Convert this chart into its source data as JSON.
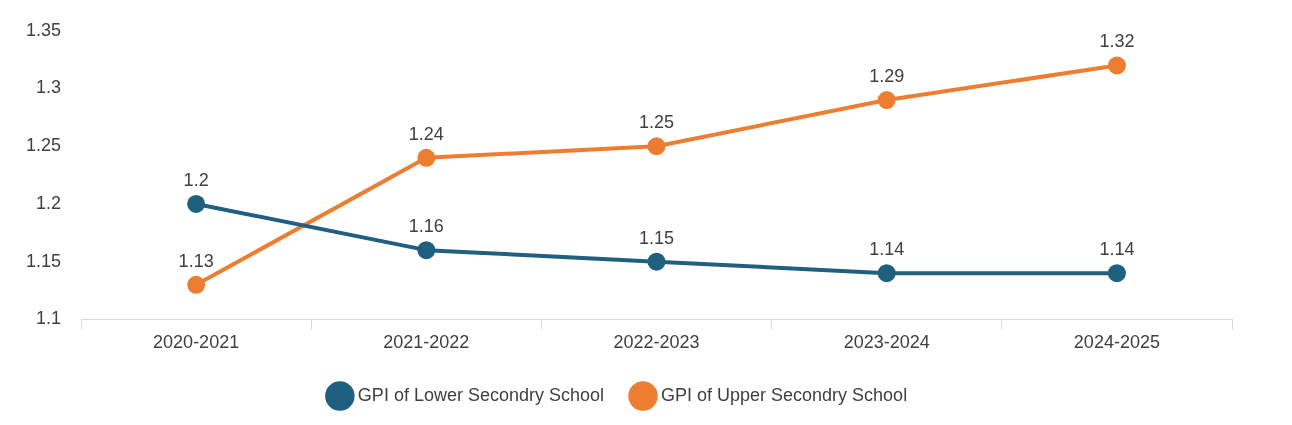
{
  "chart_data": {
    "type": "line",
    "categories": [
      "2020-2021",
      "2021-2022",
      "2022-2023",
      "2023-2024",
      "2024-2025"
    ],
    "series": [
      {
        "name": "GPI of Lower Secondry School",
        "color": "#1f5f7f",
        "values": [
          1.2,
          1.16,
          1.15,
          1.14,
          1.14
        ]
      },
      {
        "name": "GPI of Upper Secondry School",
        "color": "#ed7d31",
        "values": [
          1.13,
          1.24,
          1.25,
          1.29,
          1.32
        ]
      }
    ],
    "ylim": [
      1.1,
      1.35
    ],
    "yticks": [
      1.1,
      1.15,
      1.2,
      1.25,
      1.3,
      1.35
    ],
    "grid": false,
    "legend": "bottom",
    "marker": "circle",
    "line_style": "solid",
    "data_labels": true
  }
}
